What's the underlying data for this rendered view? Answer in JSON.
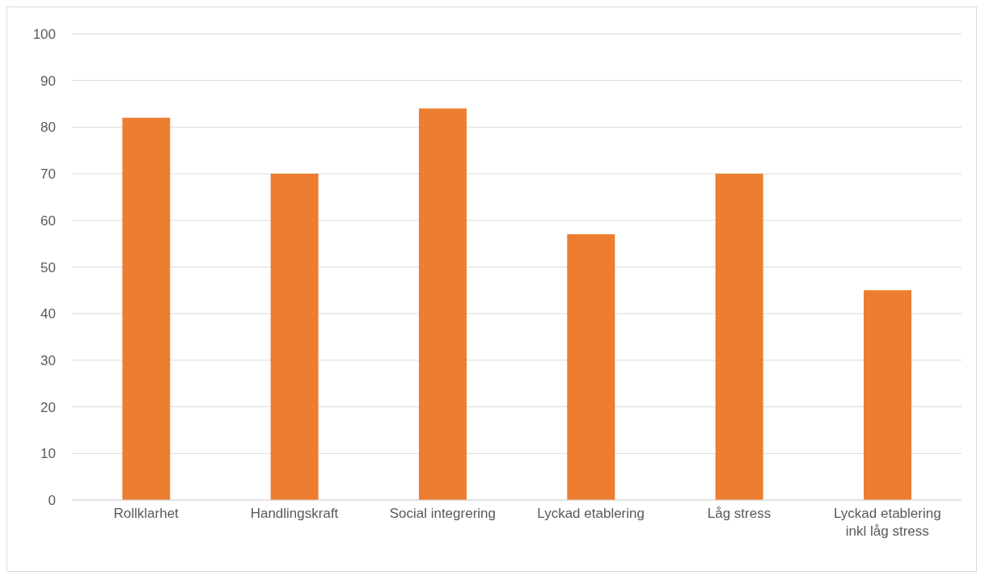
{
  "chart_data": {
    "type": "bar",
    "categories": [
      "Rollklarhet",
      "Handlingskraft",
      "Social integrering",
      "Lyckad etablering",
      "Låg stress",
      "Lyckad etablering inkl låg stress"
    ],
    "values": [
      82,
      70,
      84,
      57,
      70,
      45
    ],
    "color": "#ed7d31",
    "ylim": [
      0,
      100
    ],
    "yticks": [
      0,
      10,
      20,
      30,
      40,
      50,
      60,
      70,
      80,
      90,
      100
    ],
    "grid": "y",
    "legend": false
  }
}
